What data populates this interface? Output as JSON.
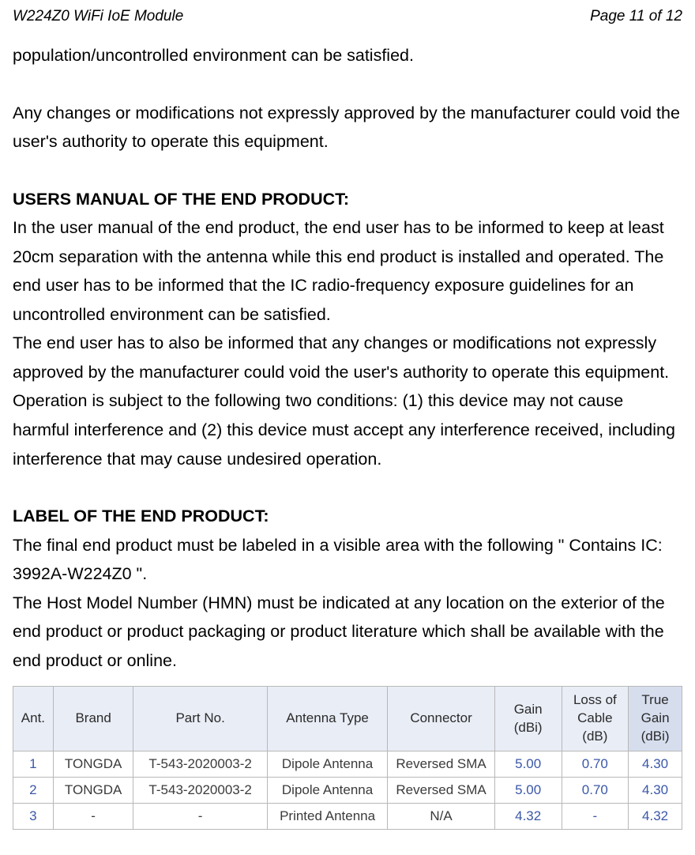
{
  "header": {
    "left": "W224Z0 WiFi IoE Module",
    "right": "Page 11 of 12"
  },
  "para1": "population/uncontrolled environment can be satisfied.",
  "para2": "Any changes or modifications not expressly approved by the manufacturer could void the user's authority to operate this equipment.",
  "section_users": {
    "heading": "USERS MANUAL OF THE END PRODUCT:",
    "body": "In the user manual of the end product, the end user has to be informed to keep at least 20cm separation with the antenna while this end product is installed and operated. The end user has to be informed that the IC radio-frequency exposure guidelines for an uncontrolled environment can be satisfied.\nThe end user has to also be informed that any changes or modifications not expressly approved by the manufacturer could void the user's authority to operate this equipment. Operation is subject to the following two conditions: (1) this device may not cause harmful interference and (2) this device must accept any interference received, including interference that may cause undesired operation."
  },
  "section_label": {
    "heading": "LABEL OF THE END PRODUCT:",
    "body": "The final end product must be labeled in a visible area with the following \" Contains IC: 3992A-W224Z0 \".\nThe Host Model Number (HMN) must be indicated at any location on the exterior of the end product or product packaging or product literature which shall be available with the end product or online."
  },
  "table": {
    "columns": [
      "Ant.",
      "Brand",
      "Part No.",
      "Antenna Type",
      "Connector",
      "Gain (dBi)",
      "Loss of Cable (dB)",
      "True Gain (dBi)"
    ],
    "rows": [
      [
        "1",
        "TONGDA",
        "T-543-2020003-2",
        "Dipole Antenna",
        "Reversed SMA",
        "5.00",
        "0.70",
        "4.30"
      ],
      [
        "2",
        "TONGDA",
        "T-543-2020003-2",
        "Dipole Antenna",
        "Reversed SMA",
        "5.00",
        "0.70",
        "4.30"
      ],
      [
        "3",
        "-",
        "-",
        "Printed Antenna",
        "N/A",
        "4.32",
        "-",
        "4.32"
      ]
    ],
    "header_bg": "#e9edf6",
    "true_gain_bg": "#d6deee",
    "border_color": "#b8b8b8",
    "number_color": "#3b58a8",
    "text_color": "#3b3b3b"
  }
}
